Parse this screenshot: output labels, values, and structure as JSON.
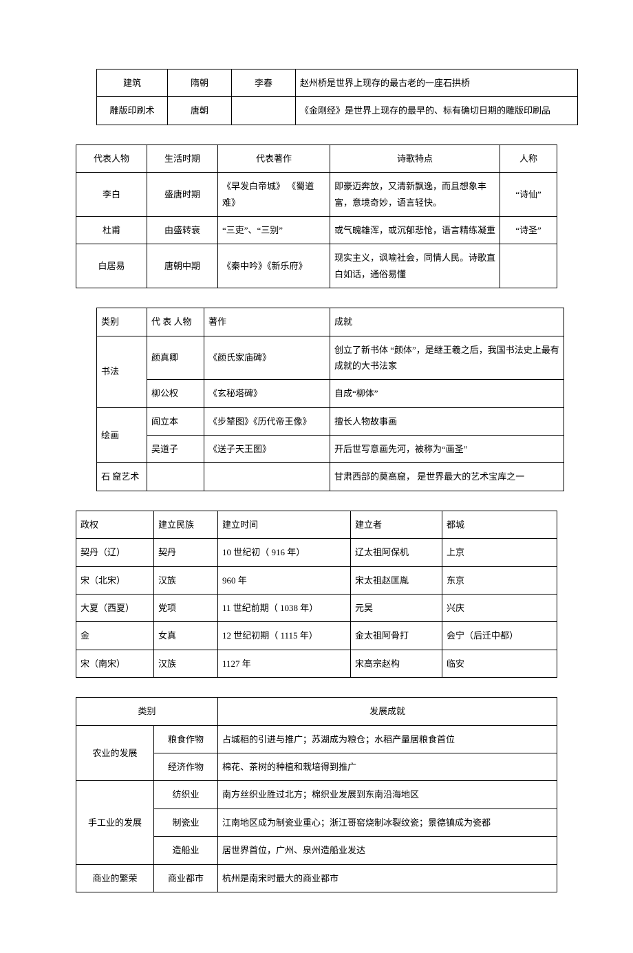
{
  "table1": {
    "rows": [
      [
        "建筑",
        "隋朝",
        "李春",
        "赵州桥是世界上现存的最古老的一座石拱桥"
      ],
      [
        "雕版印刷术",
        "唐朝",
        "",
        "《金刚经》是世界上现存的最早的、标有确切日期的雕版印刷品"
      ]
    ]
  },
  "table2": {
    "headers": [
      "代表人物",
      "生活时期",
      "代表著作",
      "诗歌特点",
      "人称"
    ],
    "rows": [
      [
        "李白",
        "盛唐时期",
        "《早发白帝城》 《蜀道难》",
        "即豪迈奔放，又清新飘逸，而且想象丰富，意境奇妙，语言轻快。",
        "“诗仙”"
      ],
      [
        "杜甫",
        "由盛转衰",
        "“三吏”、“三别”",
        "或气魄雄浑，或沉郁悲怆，语言精练凝重",
        "“诗圣”"
      ],
      [
        "白居易",
        "唐朝中期",
        "《秦中吟》《新乐府》",
        "现实主义，讽喻社会，同情人民。诗歌直白如话，通俗易懂",
        ""
      ]
    ]
  },
  "table3": {
    "headers": [
      "类别",
      "代 表 人物",
      "著作",
      "成就"
    ],
    "rows": [
      {
        "cat": "书法",
        "sub": [
          [
            "颜真卿",
            "《颜氏家庙碑》",
            "创立了新书体 “颜体”，是继王羲之后，我国书法史上最有成就的大书法家"
          ],
          [
            "柳公权",
            "《玄秘塔碑》",
            "自成“柳体”"
          ]
        ]
      },
      {
        "cat": "绘画",
        "sub": [
          [
            "阎立本",
            "《步辇图》《历代帝王像》",
            "擅长人物故事画"
          ],
          [
            "吴道子",
            "《送子天王图》",
            "开后世写意画先河，被称为“画圣”"
          ]
        ]
      },
      {
        "cat": "石 窟艺术",
        "sub": [
          [
            "",
            "",
            "甘肃西部的莫高窟，  是世界最大的艺术宝库之一"
          ]
        ]
      }
    ]
  },
  "table4": {
    "headers": [
      "政权",
      "建立民族",
      "建立时间",
      "建立者",
      "都城"
    ],
    "rows": [
      [
        "契丹（辽）",
        "契丹",
        "10 世纪初（ 916 年）",
        "辽太祖阿保机",
        "上京"
      ],
      [
        "宋（北宋）",
        "汉族",
        "960 年",
        "宋太祖赵匡胤",
        "东京"
      ],
      [
        "大夏（西夏）",
        "党项",
        "11 世纪前期（ 1038 年）",
        "元昊",
        "兴庆"
      ],
      [
        "金",
        "女真",
        "12 世纪初期（ 1115 年）",
        "金太祖阿骨打",
        "会宁（后迁中都）"
      ],
      [
        "宋（南宋）",
        "汉族",
        "1127 年",
        "宋高宗赵构",
        "临安"
      ]
    ]
  },
  "table5": {
    "headers": [
      "类别",
      "发展成就"
    ],
    "rows": [
      {
        "cat": "农业的发展",
        "sub": [
          [
            "粮食作物",
            "占城稻的引进与推广；苏湖成为粮仓；水稻产量居粮食首位"
          ],
          [
            "经济作物",
            "棉花、茶树的种植和栽培得到推广"
          ]
        ]
      },
      {
        "cat": "手工业的发展",
        "sub": [
          [
            "纺织业",
            "南方丝织业胜过北方；棉织业发展到东南沿海地区"
          ],
          [
            "制瓷业",
            "江南地区成为制瓷业重心；浙江哥窑烧制冰裂纹瓷；景德镇成为瓷都"
          ],
          [
            "造船业",
            "居世界首位，广州、泉州造船业发达"
          ]
        ]
      },
      {
        "cat": "商业的繁荣",
        "sub": [
          [
            "商业都市",
            "杭州是南宋时最大的商业都市"
          ]
        ]
      }
    ]
  }
}
